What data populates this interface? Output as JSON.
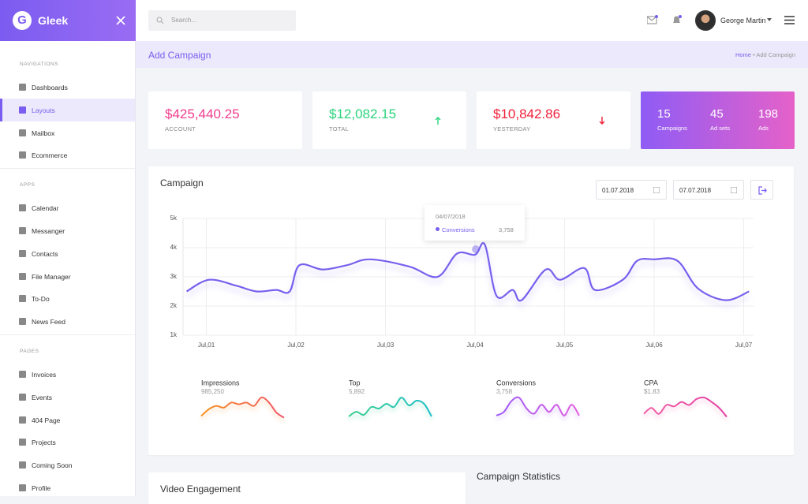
{
  "brand": "Gleek",
  "search_placeholder": "Search...",
  "user": {
    "name": "George Martin"
  },
  "sidebar": [
    {
      "heading": "NAVIGATIONS",
      "items": [
        {
          "label": "Dashboards"
        },
        {
          "label": "Layouts",
          "active": true
        },
        {
          "label": "Mailbox"
        },
        {
          "label": "Ecommerce"
        }
      ]
    },
    {
      "heading": "APPS",
      "items": [
        {
          "label": "Calendar"
        },
        {
          "label": "Messanger"
        },
        {
          "label": "Contacts"
        },
        {
          "label": "File Manager"
        },
        {
          "label": "To-Do"
        },
        {
          "label": "News Feed"
        }
      ]
    },
    {
      "heading": "PAGES",
      "items": [
        {
          "label": "Invoices"
        },
        {
          "label": "Events"
        },
        {
          "label": "404 Page"
        },
        {
          "label": "Projects"
        },
        {
          "label": "Coming Soon"
        },
        {
          "label": "Profile"
        }
      ]
    }
  ],
  "page_header": {
    "title": "Add Campaign",
    "breadcrumb": [
      "Home",
      "Add Campaign"
    ]
  },
  "stat_cards": [
    {
      "value": "$425,440.25",
      "label": "ACCOUNT",
      "color": "#f13d8e"
    },
    {
      "value": "$12,082.15",
      "label": "TOTAL",
      "color": "#2bd47d",
      "trend": "up"
    },
    {
      "value": "$10,842.86",
      "label": "YESTERDAY",
      "color": "#f0203a",
      "trend": "down"
    }
  ],
  "summary_card": [
    {
      "value": "15",
      "label": "Campaigns"
    },
    {
      "value": "45",
      "label": "Ad sets"
    },
    {
      "value": "198",
      "label": "Ads"
    }
  ],
  "campaign": {
    "title": "Campaign",
    "date_from": "01.07.2018",
    "date_to": "07.07.2018",
    "chart": {
      "type": "line",
      "color": "#7661ee",
      "grid": true,
      "x": [
        0.78,
        1.03,
        1.33,
        1.56,
        1.78,
        1.93,
        2.04,
        2.3,
        2.57,
        2.83,
        3.27,
        3.58,
        3.8,
        4.0,
        4.11,
        4.24,
        4.42,
        4.52,
        4.79,
        4.95,
        5.22,
        5.34,
        5.65,
        5.81,
        6.0,
        6.26,
        6.49,
        6.8,
        7.06
      ],
      "values": [
        2500,
        2900,
        2700,
        2500,
        2550,
        2500,
        3400,
        3250,
        3400,
        3600,
        3350,
        3000,
        3800,
        3758,
        4100,
        2350,
        2550,
        2200,
        3250,
        2900,
        3300,
        2550,
        2900,
        3550,
        3600,
        3550,
        2600,
        2200,
        2500
      ],
      "xlim": [
        0.74,
        7.11
      ],
      "ylim": [
        1000,
        5000
      ],
      "xticks": [
        {
          "value": 1,
          "label": "Jul,01"
        },
        {
          "value": 2,
          "label": "Jul,02"
        },
        {
          "value": 3,
          "label": "Jul,03"
        },
        {
          "value": 4,
          "label": "Jul,04"
        },
        {
          "value": 5,
          "label": "Jul,05"
        },
        {
          "value": 6,
          "label": "Jul,06"
        },
        {
          "value": 7,
          "label": "Jul,07"
        }
      ],
      "yticks": [
        {
          "value": 1000,
          "label": "1k"
        },
        {
          "value": 2000,
          "label": "2k"
        },
        {
          "value": 3000,
          "label": "3k"
        },
        {
          "value": 4000,
          "label": "4k"
        },
        {
          "value": 5000,
          "label": "5k"
        }
      ]
    },
    "tooltip": {
      "date": "04/07/2018",
      "series": "Conversions",
      "value": "3,758"
    },
    "metrics": [
      {
        "name": "Impressions",
        "value": "985,250",
        "colors": [
          "#f7931e",
          "#f1556c"
        ],
        "trend": [
          2,
          4,
          5,
          4.5,
          6,
          5.5,
          6,
          5,
          7.5,
          6,
          3,
          1.5
        ]
      },
      {
        "name": "Top",
        "value": "5,892",
        "colors": [
          "#3ccf91",
          "#1fbfc9"
        ],
        "trend": [
          2,
          3.5,
          2.5,
          5,
          4.5,
          6,
          5,
          8,
          5.5,
          7,
          6,
          2
        ]
      },
      {
        "name": "Conversions",
        "value": "3,758",
        "colors": [
          "#9b59f5",
          "#e35ee0"
        ],
        "trend": [
          2,
          3,
          6,
          7,
          4,
          2.5,
          5,
          3,
          5,
          2,
          5,
          2
        ]
      },
      {
        "name": "CPA",
        "value": "$1.83",
        "colors": [
          "#f25fa8",
          "#e33ea0"
        ],
        "trend": [
          3,
          5,
          3,
          6,
          5.5,
          7,
          6,
          8,
          8.5,
          7,
          5,
          2
        ]
      }
    ]
  },
  "video_engagement": {
    "title": "Video Engagement"
  },
  "campaign_statistics": {
    "title": "Campaign Statistics"
  }
}
